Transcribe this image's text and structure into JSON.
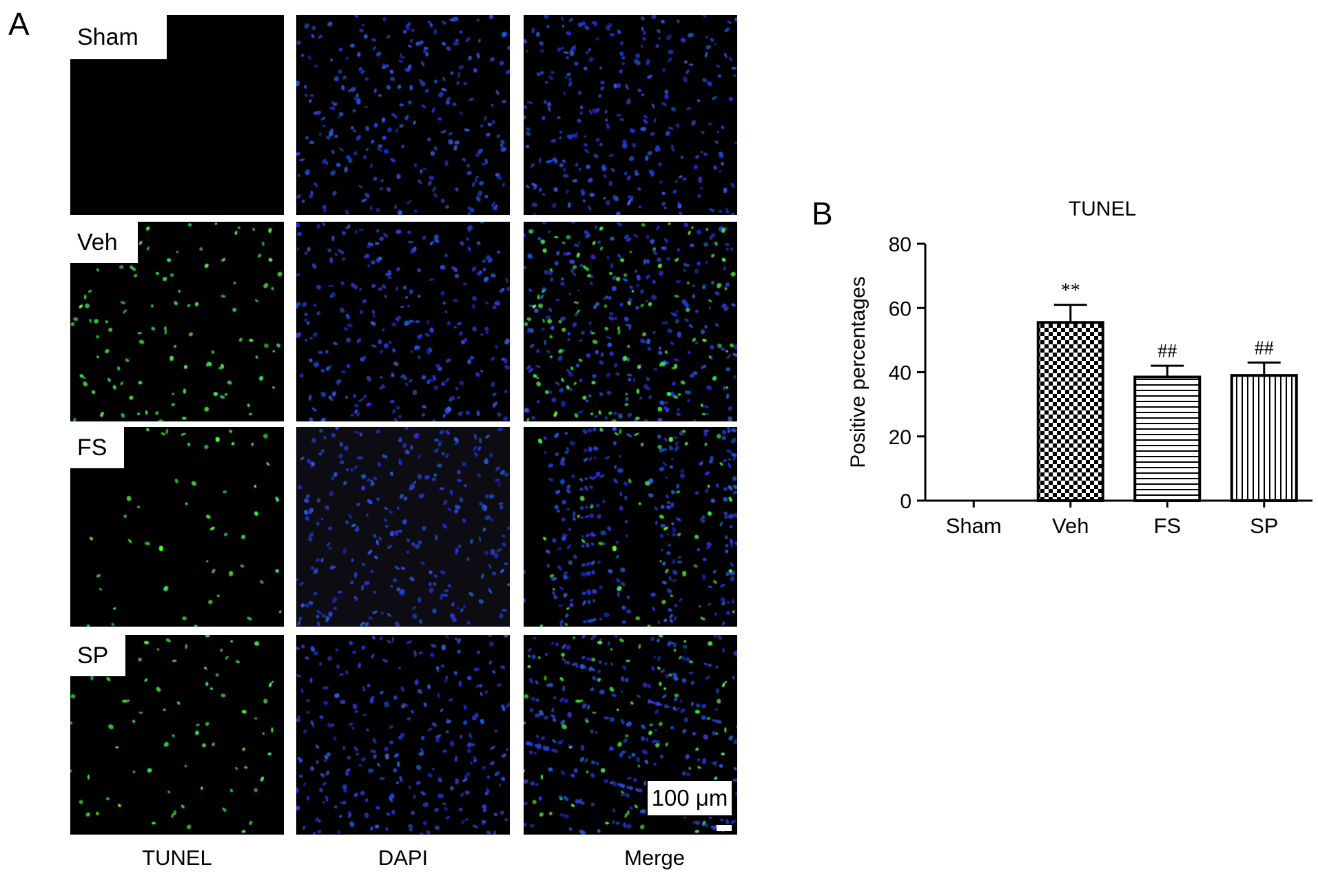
{
  "panel_a": {
    "letter": "A",
    "rows": [
      {
        "label": "Sham",
        "tunel_density": 0.0
      },
      {
        "label": "Veh",
        "tunel_density": 1.0
      },
      {
        "label": "FS",
        "tunel_density": 0.45
      },
      {
        "label": "SP",
        "tunel_density": 0.7
      }
    ],
    "columns": [
      "TUNEL",
      "DAPI",
      "Merge"
    ],
    "scale_bar": "100 μm"
  },
  "panel_b": {
    "letter": "B"
  },
  "chart_data": {
    "type": "bar",
    "title": "TUNEL",
    "ylabel": "Positive percentages",
    "xlabel": "",
    "categories": [
      "Sham",
      "Veh",
      "FS",
      "SP"
    ],
    "values": [
      0,
      55.5,
      38.5,
      39
    ],
    "errors": [
      0,
      5.5,
      3.5,
      4
    ],
    "annotations": [
      "",
      "**",
      "##",
      "##"
    ],
    "patterns": [
      "none",
      "checker",
      "horizontal",
      "vertical"
    ],
    "ylim": [
      0,
      80
    ],
    "yticks": [
      0,
      20,
      40,
      60,
      80
    ],
    "grid": false
  }
}
